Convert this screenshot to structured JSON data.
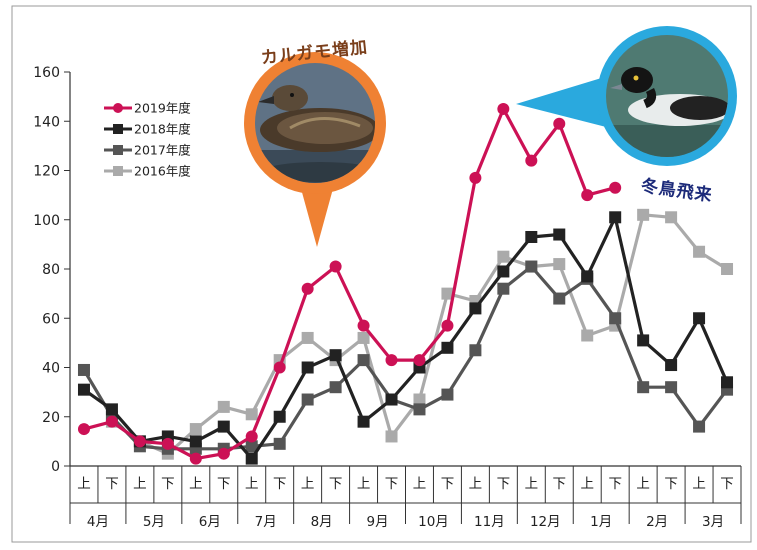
{
  "chart_data": {
    "type": "line",
    "x": [
      "4月上",
      "4月下",
      "5月上",
      "5月下",
      "6月上",
      "6月下",
      "7月上",
      "7月下",
      "8月上",
      "8月下",
      "9月上",
      "9月下",
      "10月上",
      "10月下",
      "11月上",
      "11月下",
      "12月上",
      "12月下",
      "1月上",
      "1月下",
      "2月上",
      "2月下",
      "3月上",
      "3月下"
    ],
    "halves": [
      "上",
      "下"
    ],
    "months": [
      "4月",
      "5月",
      "6月",
      "7月",
      "8月",
      "9月",
      "10月",
      "11月",
      "12月",
      "1月",
      "2月",
      "3月"
    ],
    "ylim": [
      0,
      160
    ],
    "yticks": [
      "0",
      "20",
      "40",
      "60",
      "80",
      "100",
      "120",
      "140",
      "160"
    ],
    "grid": false,
    "legend_position": "top-left",
    "series": [
      {
        "name": "2016年度",
        "color": "#aaaaaa",
        "marker": "square",
        "values": [
          null,
          18,
          10,
          5,
          15,
          24,
          21,
          43,
          52,
          43,
          52,
          12,
          27,
          70,
          67,
          85,
          81,
          82,
          53,
          57,
          102,
          101,
          87,
          80
        ]
      },
      {
        "name": "2017年度",
        "color": "#555555",
        "marker": "square",
        "values": [
          39,
          20,
          8,
          7,
          7,
          7,
          8,
          9,
          27,
          32,
          43,
          27,
          23,
          29,
          47,
          72,
          81,
          68,
          76,
          60,
          32,
          32,
          16,
          31
        ]
      },
      {
        "name": "2018年度",
        "color": "#222222",
        "marker": "square",
        "values": [
          31,
          23,
          10,
          12,
          10,
          16,
          3,
          20,
          40,
          45,
          18,
          27,
          40,
          48,
          64,
          79,
          93,
          94,
          77,
          101,
          51,
          41,
          60,
          34
        ]
      },
      {
        "name": "2019年度",
        "color": "#cc1155",
        "marker": "circle",
        "values": [
          15,
          18,
          10,
          9,
          3,
          5,
          12,
          40,
          72,
          81,
          57,
          43,
          43,
          57,
          117,
          145,
          124,
          139,
          110,
          113,
          null,
          null,
          null,
          null
        ]
      }
    ],
    "annotations": [
      {
        "text": "カルガモ増加",
        "color": "#7a3e1a",
        "accent": "#ef8133",
        "photo": "spot-billed-duck"
      },
      {
        "text": "冬鳥飛来",
        "color": "#1d2b7a",
        "accent": "#2aa9de",
        "photo": "tufted-duck"
      }
    ]
  }
}
